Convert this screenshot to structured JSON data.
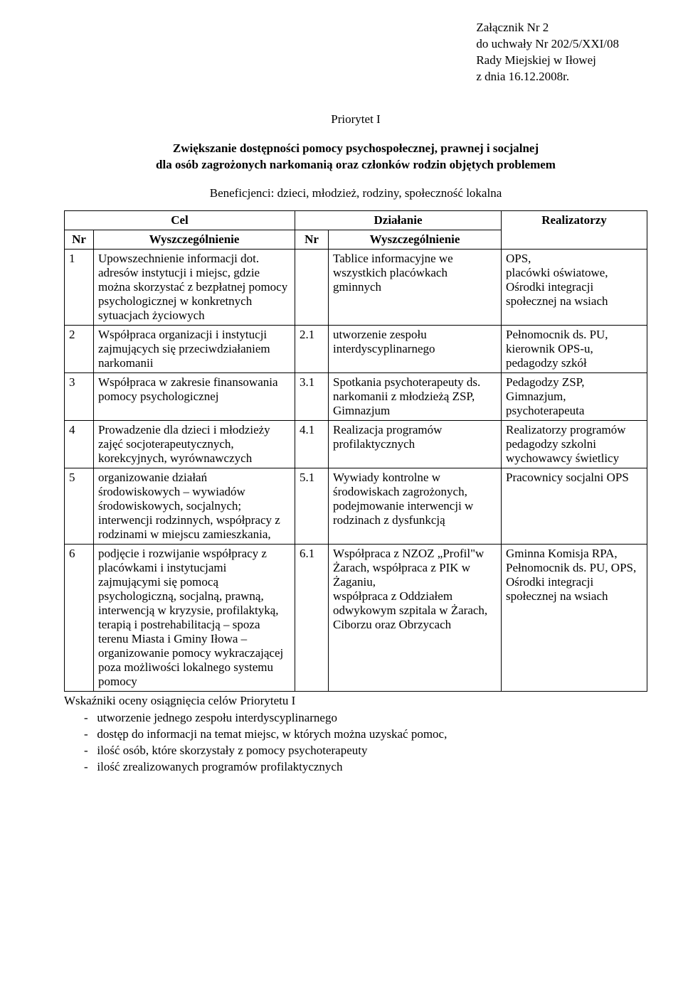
{
  "attachment": {
    "line1": "Załącznik Nr  2",
    "line2": "do uchwały Nr 202/5/XXI/08",
    "line3": "Rady Miejskiej w Iłowej",
    "line4": "z dnia  16.12.2008r."
  },
  "priority_title": "Priorytet I",
  "priority_desc_line1": "Zwiększanie dostępności pomocy psychospołecznej, prawnej i socjalnej",
  "priority_desc_line2": "dla osób zagrożonych narkomanią oraz członków rodzin objętych problemem",
  "beneficiaries": "Beneficjenci: dzieci, młodzież, rodziny, społeczność lokalna",
  "table_headers": {
    "cel": "Cel",
    "dzialanie": "Działanie",
    "nr": "Nr",
    "wyszczegolnienie": "Wyszczególnienie",
    "realizatorzy": "Realizatorzy"
  },
  "rows": [
    {
      "cel_nr": "1",
      "cel": "Upowszechnienie informacji dot. adresów instytucji i miejsc, gdzie można skorzystać z bez­płatnej pomocy psychologicznej w konkretnych sytuacjach życiowych",
      "dz_nr": "",
      "dzialanie": "Tablice informacyjne we wszystkich placówkach gminnych",
      "realizatorzy": "OPS,\nplacówki oświatowe,\nOśrodki integracji społecznej na wsiach"
    },
    {
      "cel_nr": "2",
      "cel": "Współpraca organizacji i instytucji zajmujących się przeciwdziałaniem narkomanii",
      "dz_nr": "2.1",
      "dzialanie": "utworzenie zespołu interdyscyplinarnego",
      "realizatorzy": "Pełnomocnik ds. PU, kierownik OPS-u, pedagodzy szkół"
    },
    {
      "cel_nr": "3",
      "cel": "Współpraca w zakresie finansowania pomocy psychologicznej",
      "dz_nr": "3.1",
      "dzialanie": "Spotkania psychoterapeuty ds. narkomanii z młodzieżą ZSP, Gimnazjum",
      "realizatorzy": "Pedagodzy ZSP, Gimnazjum, psychoterapeuta"
    },
    {
      "cel_nr": "4",
      "cel": "Prowadzenie dla dzieci i młodzieży zajęć socjoterapeutycznych, korekcyjnych, wyrównawczych",
      "dz_nr": "4.1",
      "dzialanie": "Realizacja programów profilaktycznych",
      "realizatorzy": "Realizatorzy programów pedagodzy szkolni wychowawcy świetlicy"
    },
    {
      "cel_nr": "5",
      "cel": "organizowanie działań środowiskowych – wywiadów środowiskowych, socjalnych; interwencji rodzinnych, współ­pracy z rodzinami w miejscu zamieszkania,",
      "dz_nr": "5.1",
      "dzialanie": "Wywiady kontrolne w środowiskach zagrożonych, podejmowanie interwencji w rodzinach z dysfunkcją",
      "realizatorzy": "Pracownicy socjalni OPS"
    },
    {
      "cel_nr": "6",
      "cel": "podjęcie i rozwijanie współpracy z placówkami i instytucjami zajmującymi się pomocą psychologiczną, socjalną, prawną, interwencją w kryzysie, profilaktyką, terapią i postrehabilitacją – spoza terenu Miasta i Gminy Iłowa – organizowanie pomocy wykraczającej poza możliwości lokalnego systemu pomocy",
      "dz_nr": "6.1",
      "dzialanie": "Współpraca z NZOZ „Profil\"w Żarach, współpraca z PIK w Żaganiu,\nwspółpraca z Oddziałem odwykowym szpitala w Żarach, Ciborzu oraz Obrzycach",
      "realizatorzy": "Gminna Komisja RPA, Pełnomocnik ds. PU, OPS,\nOśrodki integracji społecznej na wsiach"
    }
  ],
  "indicators": {
    "header": "Wskaźniki oceny osiągnięcia celów Priorytetu I",
    "items": [
      "utworzenie jednego zespołu interdyscyplinarnego",
      "dostęp do informacji na temat miejsc, w których można uzyskać pomoc,",
      "ilość osób, które skorzystały z pomocy psychoterapeuty",
      "ilość zrealizowanych programów profilaktycznych"
    ]
  },
  "colors": {
    "background": "#ffffff",
    "text": "#000000",
    "border": "#000000"
  },
  "fonts": {
    "body": "Times New Roman",
    "size_pt": 12
  }
}
